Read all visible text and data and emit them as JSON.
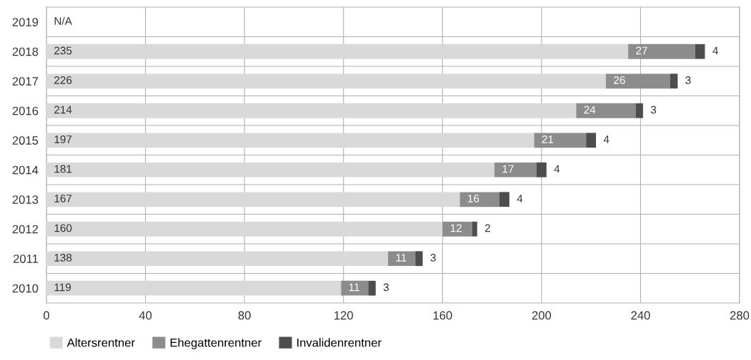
{
  "chart_data": {
    "type": "bar",
    "orientation": "horizontal",
    "stacked": true,
    "categories": [
      "2019",
      "2018",
      "2017",
      "2016",
      "2015",
      "2014",
      "2013",
      "2012",
      "2011",
      "2010"
    ],
    "series": [
      {
        "name": "Altersrentner",
        "color": "#d9d9d9",
        "values": [
          null,
          235,
          226,
          214,
          197,
          181,
          167,
          160,
          138,
          119
        ],
        "value_labels": [
          "N/A",
          "235",
          "226",
          "214",
          "197",
          "181",
          "167",
          "160",
          "138",
          "119"
        ]
      },
      {
        "name": "Ehegattenrentner",
        "color": "#8c8c8c",
        "values": [
          null,
          27,
          26,
          24,
          21,
          17,
          16,
          12,
          11,
          11
        ],
        "value_labels": [
          null,
          "27",
          "26",
          "24",
          "21",
          "17",
          "16",
          "12",
          "11",
          "11"
        ]
      },
      {
        "name": "Invalidenrentner",
        "color": "#4d4d4d",
        "values": [
          null,
          4,
          3,
          3,
          4,
          4,
          4,
          2,
          3,
          3
        ],
        "value_labels": [
          null,
          "4",
          "3",
          "3",
          "4",
          "4",
          "4",
          "2",
          "3",
          "3"
        ]
      }
    ],
    "xlim": [
      0,
      280
    ],
    "xticks": [
      0,
      40,
      80,
      120,
      160,
      200,
      240,
      280
    ],
    "grid": true,
    "legend": "bottom left"
  }
}
